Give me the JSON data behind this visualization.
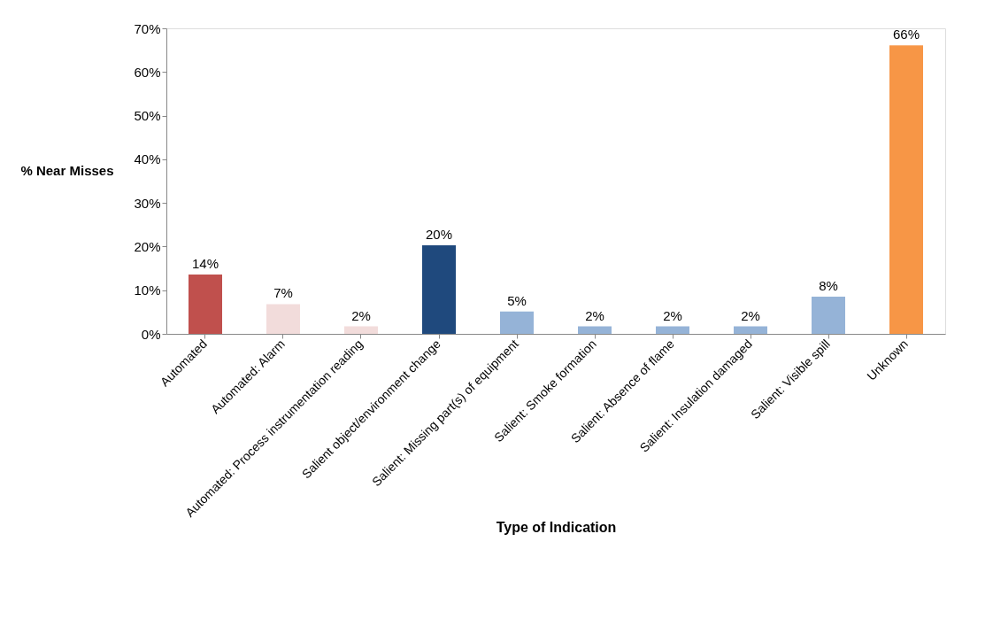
{
  "chart_data": {
    "type": "bar",
    "xlabel": "Type of Indication",
    "ylabel": "% Near Misses",
    "categories": [
      "Automated",
      "Automated: Alarm",
      "Automated: Process instrumentation reading",
      "Salient object/environment change",
      "Salient: Missing part(s) of equipment",
      "Salient: Smoke formation",
      "Salient: Absence of flame",
      "Salient: Insulation damaged",
      "Salient: Visible spill",
      "Unknown"
    ],
    "values": [
      13.6,
      6.8,
      1.7,
      20.3,
      5.1,
      1.7,
      1.7,
      1.7,
      8.5,
      66.1
    ],
    "value_labels": [
      "14%",
      "7%",
      "2%",
      "20%",
      "5%",
      "2%",
      "2%",
      "2%",
      "8%",
      "66%"
    ],
    "colors": [
      "#c0504d",
      "#f2dcdb",
      "#f2dcdb",
      "#1f497d",
      "#95b3d7",
      "#95b3d7",
      "#95b3d7",
      "#95b3d7",
      "#95b3d7",
      "#f79646"
    ],
    "ylim": [
      0,
      70
    ],
    "yticks": [
      {
        "value": 0,
        "label": "0%"
      },
      {
        "value": 10,
        "label": "10%"
      },
      {
        "value": 20,
        "label": "20%"
      },
      {
        "value": 30,
        "label": "30%"
      },
      {
        "value": 40,
        "label": "40%"
      },
      {
        "value": 50,
        "label": "50%"
      },
      {
        "value": 60,
        "label": "60%"
      },
      {
        "value": 70,
        "label": "70%"
      }
    ],
    "grid": false
  }
}
